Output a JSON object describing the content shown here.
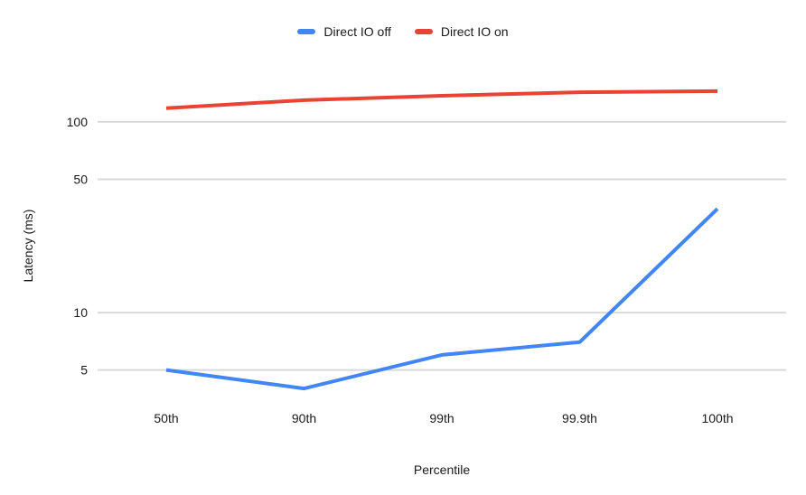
{
  "chart_data": {
    "type": "line",
    "xlabel": "Percentile",
    "ylabel": "Latency (ms)",
    "categories": [
      "50th",
      "90th",
      "99th",
      "99.9th",
      "100th"
    ],
    "series": [
      {
        "name": "Direct IO off",
        "color": "#4285f4",
        "values": [
          5,
          4,
          6,
          7,
          35
        ]
      },
      {
        "name": "Direct IO on",
        "color": "#ea4335",
        "values": [
          118,
          130,
          137,
          143,
          145
        ]
      }
    ],
    "y_scale": "log",
    "y_ticks": [
      100,
      50,
      10,
      5
    ],
    "ylim": [
      3.4,
      182
    ],
    "grid": "horizontal",
    "legend_position": "top-center",
    "line_width": 4,
    "colors": {
      "gridline": "#d9d9d9",
      "text": "#1a1a1a",
      "background": "#ffffff"
    }
  }
}
